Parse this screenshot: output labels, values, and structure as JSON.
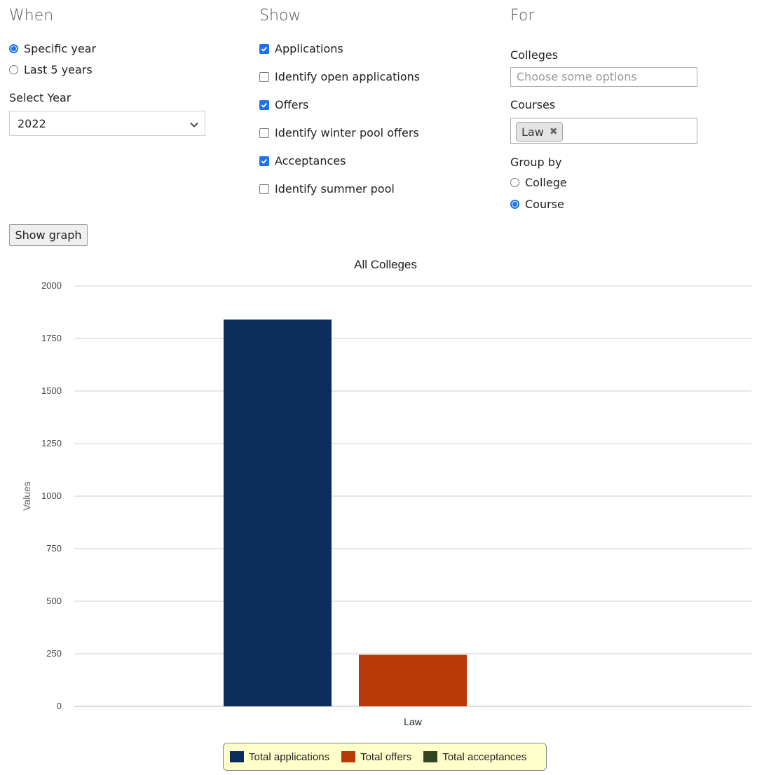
{
  "when": {
    "heading": "When",
    "options": [
      {
        "label": "Specific year",
        "selected": true
      },
      {
        "label": "Last 5 years",
        "selected": false
      }
    ],
    "select_year_label": "Select Year",
    "select_year_value": "2022"
  },
  "show": {
    "heading": "Show",
    "options": [
      {
        "label": "Applications",
        "checked": true
      },
      {
        "label": "Identify open applications",
        "checked": false
      },
      {
        "label": "Offers",
        "checked": true
      },
      {
        "label": "Identify winter pool offers",
        "checked": false
      },
      {
        "label": "Acceptances",
        "checked": true
      },
      {
        "label": "Identify summer pool",
        "checked": false
      }
    ]
  },
  "for": {
    "heading": "For",
    "colleges_label": "Colleges",
    "colleges_placeholder": "Choose some options",
    "courses_label": "Courses",
    "courses_tags": [
      "Law"
    ],
    "group_by_label": "Group by",
    "group_by_options": [
      {
        "label": "College",
        "selected": false
      },
      {
        "label": "Course",
        "selected": true
      }
    ]
  },
  "show_graph_button": "Show graph",
  "icons": {
    "dropdown": "chevron-down-icon",
    "tag_remove": "close-icon",
    "checkmark": "checkmark-icon"
  },
  "chart_data": {
    "type": "bar",
    "title": "All Colleges",
    "xlabel": "",
    "ylabel": "Values",
    "categories": [
      "Law"
    ],
    "yticks": [
      "0",
      "250",
      "500",
      "750",
      "1000",
      "1250",
      "1500",
      "1750",
      "2000"
    ],
    "ylim": [
      0,
      2000
    ],
    "grid": true,
    "legend_position": "bottom",
    "series": [
      {
        "name": "Total applications",
        "color": "#0c2d5c",
        "values": [
          1840
        ]
      },
      {
        "name": "Total offers",
        "color": "#b83a08",
        "values": [
          245
        ]
      },
      {
        "name": "Total acceptances",
        "color": "#364520",
        "values": [
          0
        ]
      }
    ]
  }
}
